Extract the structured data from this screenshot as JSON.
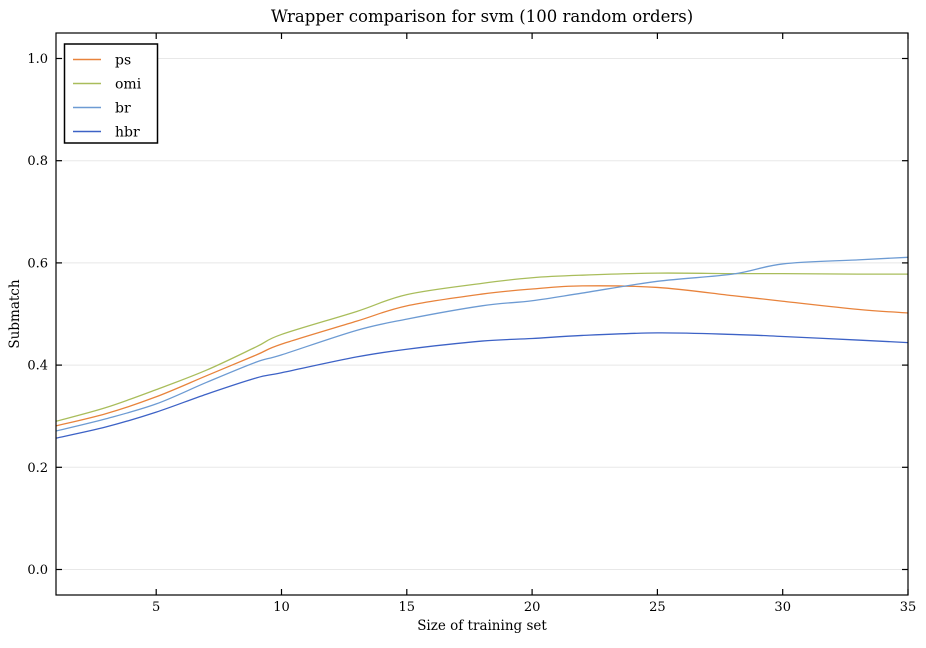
{
  "chart_data": {
    "type": "line",
    "title": "Wrapper comparison for svm (100 random orders)",
    "xlabel": "Size of training set",
    "ylabel": "Submatch",
    "xlim": [
      1,
      35
    ],
    "ylim": [
      -0.05,
      1.05
    ],
    "xticks": {
      "values": [
        5,
        10,
        15,
        20,
        25,
        30,
        35
      ],
      "labels": [
        "5",
        "10",
        "15",
        "20",
        "25",
        "30",
        "35"
      ]
    },
    "yticks": {
      "values": [
        0.0,
        0.2,
        0.4,
        0.6,
        0.8,
        1.0
      ],
      "labels": [
        "0.0",
        "0.2",
        "0.4",
        "0.6",
        "0.8",
        "1.0"
      ]
    },
    "grid": "horizontal-only",
    "grid_color": "#e8e8e8",
    "axis_color": "#000000",
    "legend_position": "upper-left",
    "x": [
      1,
      3,
      5,
      7,
      9,
      10,
      13,
      15,
      18,
      20,
      22,
      25,
      28,
      30,
      33,
      35
    ],
    "series": [
      {
        "name": "ps",
        "color": "#e8833c",
        "values": [
          0.281,
          0.305,
          0.338,
          0.379,
          0.42,
          0.441,
          0.486,
          0.516,
          0.539,
          0.549,
          0.555,
          0.552,
          0.536,
          0.525,
          0.509,
          0.502
        ]
      },
      {
        "name": "omi",
        "color": "#a9bd5b",
        "values": [
          0.29,
          0.317,
          0.352,
          0.39,
          0.436,
          0.46,
          0.505,
          0.538,
          0.56,
          0.571,
          0.576,
          0.58,
          0.579,
          0.579,
          0.578,
          0.578
        ]
      },
      {
        "name": "br",
        "color": "#6d9bd3",
        "values": [
          0.271,
          0.295,
          0.324,
          0.366,
          0.406,
          0.42,
          0.468,
          0.49,
          0.516,
          0.526,
          0.541,
          0.564,
          0.578,
          0.598,
          0.606,
          0.611
        ]
      },
      {
        "name": "hbr",
        "color": "#3d62c6",
        "values": [
          0.257,
          0.279,
          0.308,
          0.343,
          0.375,
          0.385,
          0.416,
          0.431,
          0.447,
          0.452,
          0.458,
          0.463,
          0.46,
          0.456,
          0.449,
          0.444
        ]
      }
    ]
  }
}
